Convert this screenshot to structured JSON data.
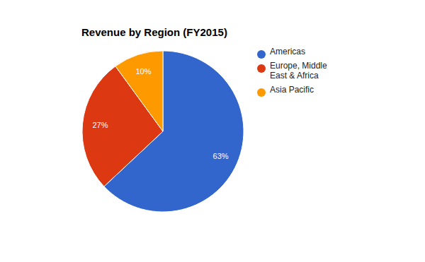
{
  "chart_data": {
    "type": "pie",
    "title": "Revenue by Region (FY2015)",
    "categories": [
      "Americas",
      "Europe, Middle East & Africa",
      "Asia Pacific"
    ],
    "values": [
      63,
      27,
      10
    ],
    "value_labels": [
      "63%",
      "27%",
      "10%"
    ],
    "colors": [
      "#3366cc",
      "#dc3912",
      "#ff9900"
    ],
    "data_labels": true,
    "legend": "top-right"
  }
}
